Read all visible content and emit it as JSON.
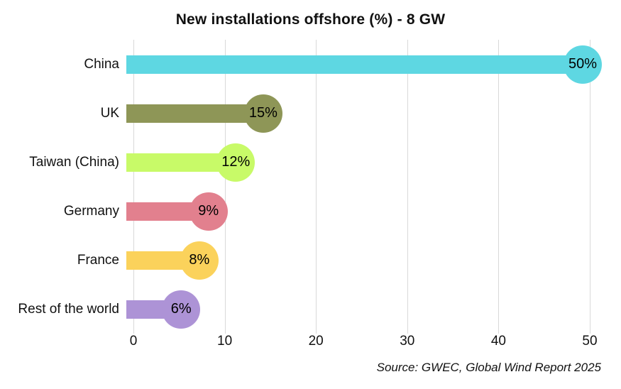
{
  "chart_data": {
    "type": "bar",
    "orientation": "horizontal",
    "title": "New installations offshore (%) - 8 GW",
    "categories": [
      "China",
      "UK",
      "Taiwan (China)",
      "Germany",
      "France",
      "Rest of the world"
    ],
    "values": [
      50,
      15,
      12,
      9,
      8,
      6
    ],
    "value_labels": [
      "50%",
      "15%",
      "12%",
      "9%",
      "8%",
      "6%"
    ],
    "colors": [
      "#5ed7e2",
      "#8e9657",
      "#c8fa68",
      "#e2808e",
      "#fbd25b",
      "#ad93d6"
    ],
    "xlabel": "",
    "ylabel": "",
    "xlim": [
      0,
      50
    ],
    "x_ticks": [
      0,
      10,
      20,
      30,
      40,
      50
    ],
    "grid": true,
    "gridline_color": "#d9d9d9",
    "source": "Source: GWEC, Global Wind Report 2025"
  }
}
